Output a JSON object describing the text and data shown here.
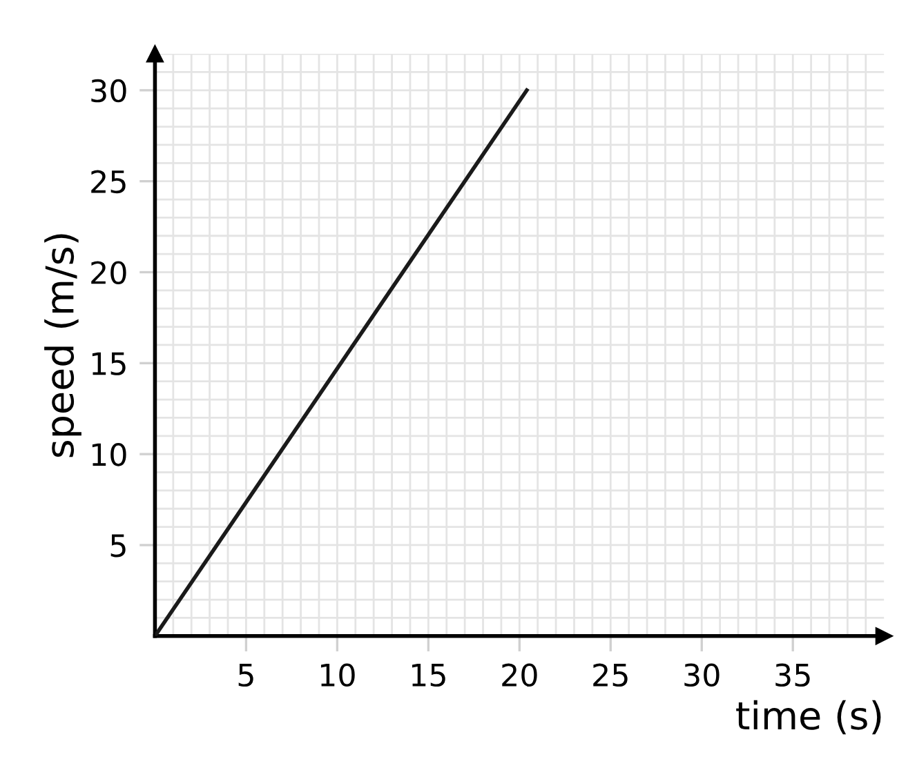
{
  "chart_data": {
    "type": "line",
    "xlabel": "time (s)",
    "ylabel": "speed (m/s)",
    "x": [
      0,
      20.4
    ],
    "series": [
      {
        "color": "#1a1a1a",
        "values": [
          0,
          30
        ]
      }
    ],
    "xlim": [
      0,
      40
    ],
    "ylim": [
      0,
      32
    ],
    "xticks": [
      5,
      10,
      15,
      20,
      25,
      30,
      35
    ],
    "yticks": [
      5,
      10,
      15,
      20,
      25,
      30
    ],
    "grid": true,
    "marker": "none",
    "line_style": "solid"
  }
}
